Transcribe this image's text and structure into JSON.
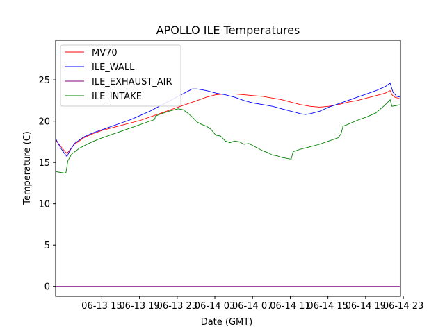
{
  "chart_data": {
    "type": "line",
    "title": "APOLLO ILE Temperatures",
    "xlabel": "Date (GMT)",
    "ylabel": "Temperature (C)",
    "xlim_hours": [
      0,
      36.6
    ],
    "ylim": [
      -1.2,
      29.8
    ],
    "x_ticks": [
      {
        "hour": 4.9,
        "label": "06-13 15"
      },
      {
        "hour": 8.9,
        "label": "06-13 19"
      },
      {
        "hour": 12.9,
        "label": "06-13 23"
      },
      {
        "hour": 16.9,
        "label": "06-14 03"
      },
      {
        "hour": 20.9,
        "label": "06-14 07"
      },
      {
        "hour": 24.9,
        "label": "06-14 11"
      },
      {
        "hour": 28.9,
        "label": "06-14 15"
      },
      {
        "hour": 32.9,
        "label": "06-14 19"
      },
      {
        "hour": 36.9,
        "label": "06-14 23"
      }
    ],
    "y_ticks": [
      {
        "value": 0,
        "label": "0"
      },
      {
        "value": 5,
        "label": "5"
      },
      {
        "value": 10,
        "label": "10"
      },
      {
        "value": 15,
        "label": "15"
      },
      {
        "value": 20,
        "label": "20"
      },
      {
        "value": 25,
        "label": "25"
      }
    ],
    "legend_position": "top-left",
    "series": [
      {
        "name": "MV70",
        "color": "#ff0000",
        "points": [
          [
            0,
            17.7
          ],
          [
            0.5,
            17.0
          ],
          [
            1.0,
            16.3
          ],
          [
            1.2,
            16.1
          ],
          [
            1.5,
            16.5
          ],
          [
            2,
            17.2
          ],
          [
            3,
            18.0
          ],
          [
            4,
            18.5
          ],
          [
            5,
            18.9
          ],
          [
            6,
            19.2
          ],
          [
            7,
            19.5
          ],
          [
            8,
            19.8
          ],
          [
            9,
            20.1
          ],
          [
            10,
            20.5
          ],
          [
            11,
            20.9
          ],
          [
            12,
            21.3
          ],
          [
            13,
            21.7
          ],
          [
            14,
            22.1
          ],
          [
            15,
            22.5
          ],
          [
            16,
            22.9
          ],
          [
            17,
            23.2
          ],
          [
            18,
            23.3
          ],
          [
            19,
            23.3
          ],
          [
            20,
            23.2
          ],
          [
            21,
            23.1
          ],
          [
            22,
            23.0
          ],
          [
            23,
            22.8
          ],
          [
            24,
            22.6
          ],
          [
            25,
            22.3
          ],
          [
            26,
            22.0
          ],
          [
            27,
            21.8
          ],
          [
            28,
            21.7
          ],
          [
            29,
            21.8
          ],
          [
            30,
            22.0
          ],
          [
            31,
            22.3
          ],
          [
            32,
            22.5
          ],
          [
            33,
            22.8
          ],
          [
            34,
            23.1
          ],
          [
            35,
            23.4
          ],
          [
            35.5,
            23.7
          ],
          [
            35.7,
            23.2
          ],
          [
            36,
            22.9
          ],
          [
            36.6,
            22.7
          ]
        ]
      },
      {
        "name": "ILE_WALL",
        "color": "#0000ff",
        "points": [
          [
            0,
            17.9
          ],
          [
            0.5,
            16.8
          ],
          [
            1.0,
            16.0
          ],
          [
            1.2,
            15.7
          ],
          [
            1.5,
            16.4
          ],
          [
            2,
            17.3
          ],
          [
            3,
            18.1
          ],
          [
            4,
            18.6
          ],
          [
            5,
            19.0
          ],
          [
            6,
            19.4
          ],
          [
            7,
            19.8
          ],
          [
            8,
            20.2
          ],
          [
            9,
            20.7
          ],
          [
            10,
            21.2
          ],
          [
            11,
            21.8
          ],
          [
            12,
            22.4
          ],
          [
            13,
            23.0
          ],
          [
            14,
            23.6
          ],
          [
            14.5,
            23.9
          ],
          [
            15,
            23.9
          ],
          [
            16,
            23.7
          ],
          [
            17,
            23.4
          ],
          [
            18,
            23.2
          ],
          [
            19,
            22.9
          ],
          [
            20,
            22.5
          ],
          [
            21,
            22.2
          ],
          [
            22,
            22.0
          ],
          [
            23,
            21.8
          ],
          [
            24,
            21.5
          ],
          [
            25,
            21.2
          ],
          [
            26,
            20.9
          ],
          [
            26.5,
            20.8
          ],
          [
            27,
            20.9
          ],
          [
            28,
            21.2
          ],
          [
            29,
            21.7
          ],
          [
            30,
            22.1
          ],
          [
            31,
            22.5
          ],
          [
            32,
            22.9
          ],
          [
            33,
            23.3
          ],
          [
            34,
            23.7
          ],
          [
            35,
            24.2
          ],
          [
            35.5,
            24.6
          ],
          [
            35.8,
            23.5
          ],
          [
            36.2,
            23.0
          ],
          [
            36.6,
            22.9
          ]
        ]
      },
      {
        "name": "ILE_EXHAUST_AIR",
        "color": "#800080",
        "points": [
          [
            0,
            0.0
          ],
          [
            36.6,
            0.0
          ]
        ]
      },
      {
        "name": "ILE_INTAKE",
        "color": "#008000",
        "points": [
          [
            0,
            13.9
          ],
          [
            0.5,
            13.8
          ],
          [
            1.0,
            13.7
          ],
          [
            1.1,
            13.8
          ],
          [
            1.3,
            15.2
          ],
          [
            1.7,
            16.0
          ],
          [
            2.5,
            16.7
          ],
          [
            3.5,
            17.3
          ],
          [
            4.5,
            17.8
          ],
          [
            5.5,
            18.2
          ],
          [
            6.5,
            18.6
          ],
          [
            7.5,
            19.0
          ],
          [
            8.5,
            19.4
          ],
          [
            9.5,
            19.8
          ],
          [
            10.5,
            20.2
          ],
          [
            10.6,
            20.6
          ],
          [
            11,
            20.8
          ],
          [
            12,
            21.2
          ],
          [
            13,
            21.5
          ],
          [
            13.5,
            21.4
          ],
          [
            14,
            21.0
          ],
          [
            14.5,
            20.5
          ],
          [
            15,
            19.9
          ],
          [
            15.5,
            19.6
          ],
          [
            16,
            19.4
          ],
          [
            16.5,
            19.0
          ],
          [
            17,
            18.3
          ],
          [
            17.5,
            18.2
          ],
          [
            18,
            17.6
          ],
          [
            18.5,
            17.4
          ],
          [
            19,
            17.6
          ],
          [
            19.5,
            17.5
          ],
          [
            20,
            17.2
          ],
          [
            20.5,
            17.3
          ],
          [
            21,
            17.0
          ],
          [
            21.5,
            16.7
          ],
          [
            22,
            16.4
          ],
          [
            22.5,
            16.2
          ],
          [
            23,
            15.9
          ],
          [
            23.5,
            15.8
          ],
          [
            24,
            15.6
          ],
          [
            24.5,
            15.5
          ],
          [
            25,
            15.4
          ],
          [
            25.2,
            16.3
          ],
          [
            26,
            16.6
          ],
          [
            27,
            16.9
          ],
          [
            28,
            17.2
          ],
          [
            29,
            17.6
          ],
          [
            30,
            18.0
          ],
          [
            30.3,
            18.5
          ],
          [
            30.5,
            19.4
          ],
          [
            31,
            19.6
          ],
          [
            32,
            20.1
          ],
          [
            33,
            20.5
          ],
          [
            34,
            21.0
          ],
          [
            34.5,
            21.5
          ],
          [
            35,
            22.0
          ],
          [
            35.5,
            22.6
          ],
          [
            35.7,
            21.8
          ],
          [
            36.2,
            21.9
          ],
          [
            36.6,
            22.0
          ]
        ]
      }
    ]
  }
}
